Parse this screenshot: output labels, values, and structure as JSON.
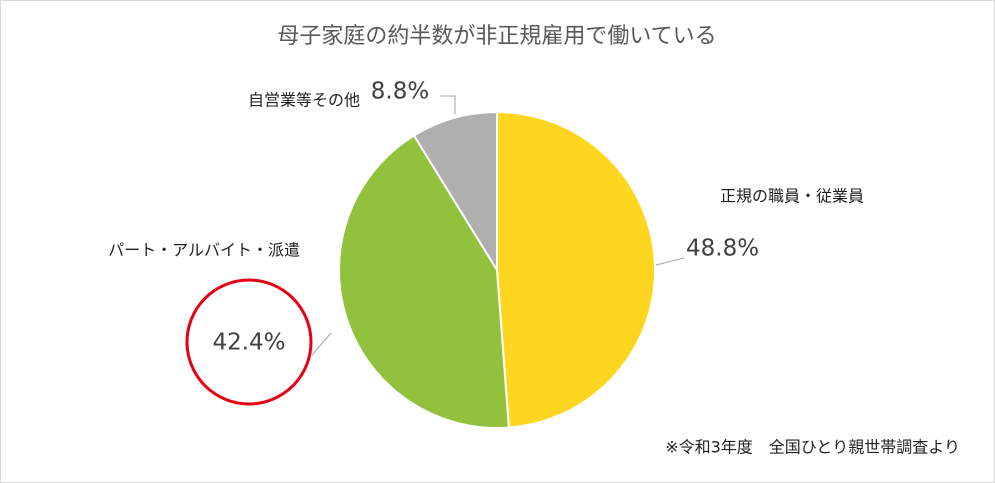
{
  "chart_data": {
    "type": "pie",
    "title": "母子家庭の約半数が非正規雇用で働いている",
    "categories": [
      "正規の職員・従業員",
      "パート・アルバイト・派遣",
      "自営業等その他"
    ],
    "values": [
      48.8,
      42.4,
      8.8
    ],
    "value_labels": [
      "48.8%",
      "42.4%",
      "8.8%"
    ],
    "colors": [
      "#FFD61F",
      "#92C13E",
      "#AFAFAF"
    ],
    "source": "※令和3年度　全国ひとり親世帯調査より"
  }
}
